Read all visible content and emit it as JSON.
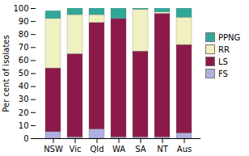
{
  "chart_data": {
    "type": "bar",
    "stacked": true,
    "categories": [
      "NSW",
      "Vic",
      "Qld",
      "WA",
      "SA",
      "NT",
      "Aus"
    ],
    "series": [
      {
        "name": "FS",
        "color": "#b0b0e0",
        "values": [
          5,
          1,
          7,
          1,
          1,
          1,
          4
        ]
      },
      {
        "name": "LS",
        "color": "#8B1A4A",
        "values": [
          49,
          64,
          82,
          91,
          66,
          95,
          68
        ]
      },
      {
        "name": "RR",
        "color": "#f0f0c0",
        "values": [
          38,
          30,
          6,
          0,
          32,
          1,
          21
        ]
      },
      {
        "name": "PPNG",
        "color": "#30a898",
        "values": [
          6,
          5,
          5,
          8,
          1,
          3,
          7
        ]
      }
    ],
    "ylabel": "Per cent of isolates",
    "ylim": [
      0,
      100
    ],
    "yticks": [
      0,
      10,
      20,
      30,
      40,
      50,
      60,
      70,
      80,
      90,
      100
    ],
    "legend": "right",
    "grid": false
  }
}
